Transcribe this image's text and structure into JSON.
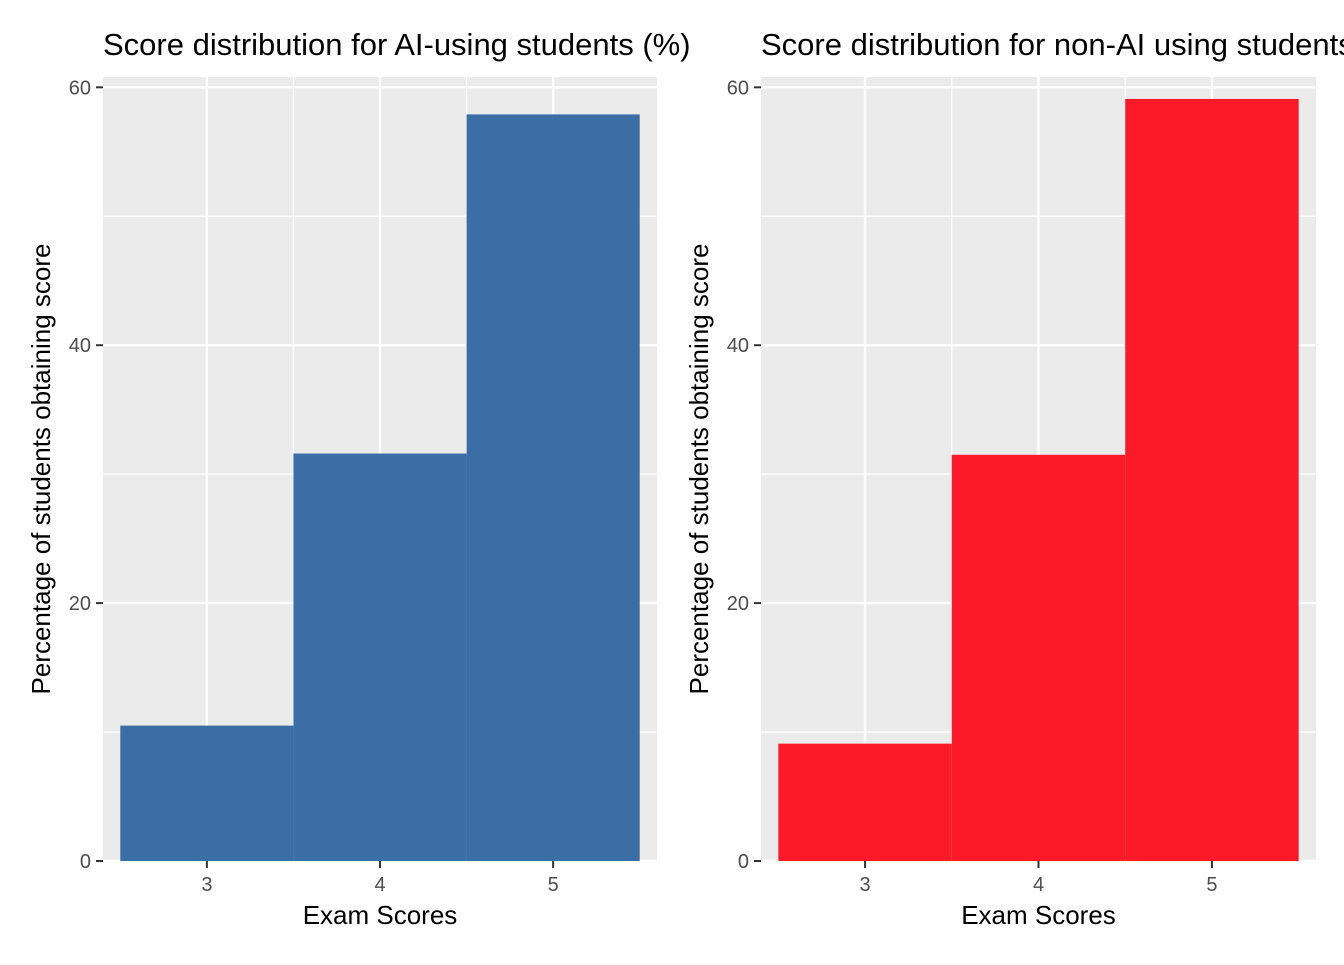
{
  "chart_data": [
    {
      "type": "bar",
      "title": "Score distribution for AI-using students (%)",
      "xlabel": "Exam Scores",
      "ylabel": "Percentage of students obtaining score",
      "categories": [
        "3",
        "4",
        "5"
      ],
      "values": [
        10.5,
        31.6,
        57.9
      ],
      "yticks": [
        "0",
        "20",
        "40",
        "60"
      ],
      "ylim": [
        0,
        60.8
      ],
      "grid": true,
      "color": "#3A6EA5"
    },
    {
      "type": "bar",
      "title": "Score distribution for non-AI using students (%)",
      "xlabel": "Exam Scores",
      "ylabel": "Percentage of students obtaining score",
      "categories": [
        "3",
        "4",
        "5"
      ],
      "values": [
        9.1,
        31.5,
        59.1
      ],
      "yticks": [
        "0",
        "20",
        "40",
        "60"
      ],
      "ylim": [
        0,
        60.8
      ],
      "grid": true,
      "color": "#FC1928"
    }
  ]
}
